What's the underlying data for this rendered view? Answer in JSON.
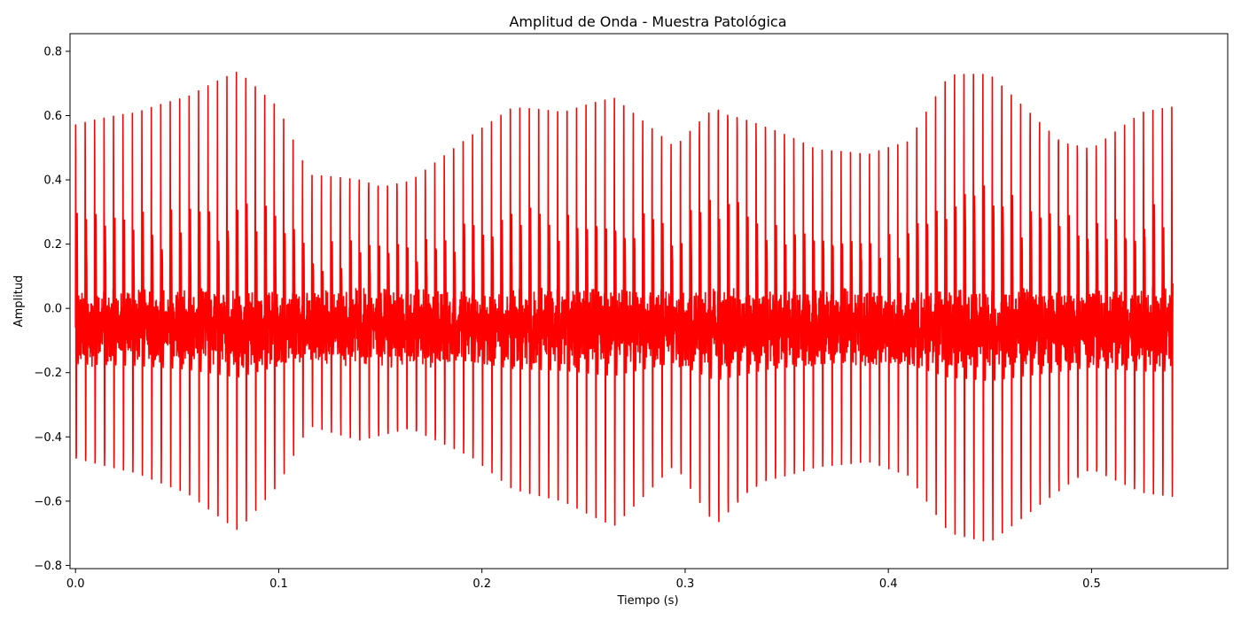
{
  "chart_data": {
    "type": "line",
    "title": "Amplitud de Onda - Muestra Patológica",
    "xlabel": "Tiempo (s)",
    "ylabel": "Amplitud",
    "xlim": [
      -0.0027,
      0.567
    ],
    "ylim": [
      -0.81,
      0.855
    ],
    "x_ticks": [
      0.0,
      0.1,
      0.2,
      0.3,
      0.4,
      0.5
    ],
    "x_tick_labels": [
      "0.0",
      "0.1",
      "0.2",
      "0.3",
      "0.4",
      "0.5"
    ],
    "y_ticks": [
      -0.8,
      -0.6,
      -0.4,
      -0.2,
      0.0,
      0.2,
      0.4,
      0.6,
      0.8
    ],
    "y_tick_labels": [
      "−0.8",
      "−0.6",
      "−0.4",
      "−0.2",
      "0.0",
      "0.2",
      "0.4",
      "0.6",
      "0.8"
    ],
    "grid": false,
    "line_color": "#ff0000",
    "series": [
      {
        "name": "",
        "pulse_period_s": 0.00465,
        "x_start": 0.0,
        "x_end": 0.54,
        "baseline": -0.06,
        "noise_amplitude": 0.06,
        "envelope_max": {
          "x": [
            0.0,
            0.03,
            0.055,
            0.08,
            0.1,
            0.115,
            0.14,
            0.165,
            0.195,
            0.215,
            0.24,
            0.265,
            0.295,
            0.315,
            0.34,
            0.365,
            0.39,
            0.41,
            0.43,
            0.45,
            0.475,
            0.5,
            0.525,
            0.54
          ],
          "y": [
            0.64,
            0.63,
            0.66,
            0.74,
            0.64,
            0.44,
            0.46,
            0.45,
            0.56,
            0.63,
            0.61,
            0.67,
            0.55,
            0.74,
            0.62,
            0.51,
            0.48,
            0.52,
            0.74,
            0.77,
            0.66,
            0.56,
            0.64,
            0.64
          ]
        },
        "envelope_min": {
          "x": [
            0.0,
            0.03,
            0.055,
            0.08,
            0.1,
            0.115,
            0.14,
            0.165,
            0.195,
            0.215,
            0.24,
            0.265,
            0.295,
            0.315,
            0.34,
            0.365,
            0.39,
            0.41,
            0.43,
            0.45,
            0.475,
            0.5,
            0.525,
            0.54
          ],
          "y": [
            -0.51,
            -0.53,
            -0.58,
            -0.69,
            -0.55,
            -0.37,
            -0.43,
            -0.41,
            -0.48,
            -0.57,
            -0.6,
            -0.68,
            -0.5,
            -0.72,
            -0.58,
            -0.51,
            -0.48,
            -0.52,
            -0.7,
            -0.74,
            -0.64,
            -0.55,
            -0.6,
            -0.6
          ]
        }
      }
    ]
  }
}
